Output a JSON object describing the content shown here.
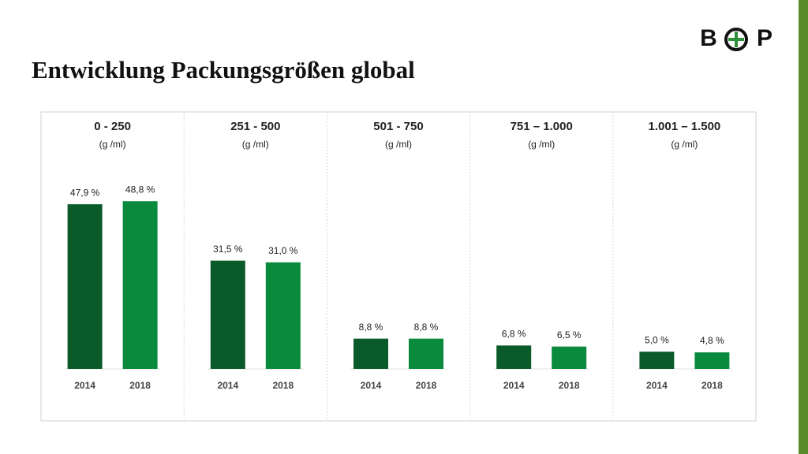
{
  "title": "Entwicklung Packungsgrößen global",
  "logo": [
    "B",
    "P"
  ],
  "chart_data": [
    {
      "type": "bar",
      "title": "0 - 250",
      "subtitle": "(g /ml)",
      "categories": [
        "2014",
        "2018"
      ],
      "values": [
        47.9,
        48.8
      ],
      "value_labels": [
        "47,9 %",
        "48,8 %"
      ],
      "colors": [
        "#0b5a2a",
        "#0a8a3c"
      ],
      "ylim": [
        0,
        50
      ]
    },
    {
      "type": "bar",
      "title": "251 - 500",
      "subtitle": "(g /ml)",
      "categories": [
        "2014",
        "2018"
      ],
      "values": [
        31.5,
        31.0
      ],
      "value_labels": [
        "31,5 %",
        "31,0 %"
      ],
      "colors": [
        "#0b5a2a",
        "#0a8a3c"
      ],
      "ylim": [
        0,
        50
      ]
    },
    {
      "type": "bar",
      "title": "501 - 750",
      "subtitle": "(g /ml)",
      "categories": [
        "2014",
        "2018"
      ],
      "values": [
        8.8,
        8.8
      ],
      "value_labels": [
        "8,8 %",
        "8,8 %"
      ],
      "colors": [
        "#0b5a2a",
        "#0a8a3c"
      ],
      "ylim": [
        0,
        50
      ]
    },
    {
      "type": "bar",
      "title": "751 – 1.000",
      "subtitle": "(g /ml)",
      "categories": [
        "2014",
        "2018"
      ],
      "values": [
        6.8,
        6.5
      ],
      "value_labels": [
        "6,8 %",
        "6,5 %"
      ],
      "colors": [
        "#0b5a2a",
        "#0a8a3c"
      ],
      "ylim": [
        0,
        50
      ]
    },
    {
      "type": "bar",
      "title": "1.001 – 1.500",
      "subtitle": "(g /ml)",
      "categories": [
        "2014",
        "2018"
      ],
      "values": [
        5.0,
        4.8
      ],
      "value_labels": [
        "5,0 %",
        "4,8 %"
      ],
      "colors": [
        "#0b5a2a",
        "#0a8a3c"
      ],
      "ylim": [
        0,
        50
      ]
    }
  ]
}
